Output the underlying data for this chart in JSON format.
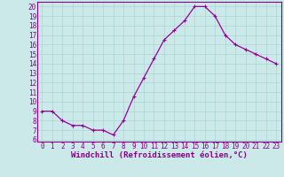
{
  "x": [
    0,
    1,
    2,
    3,
    4,
    5,
    6,
    7,
    8,
    9,
    10,
    11,
    12,
    13,
    14,
    15,
    16,
    17,
    18,
    19,
    20,
    21,
    22,
    23
  ],
  "y": [
    9,
    9,
    8,
    7.5,
    7.5,
    7,
    7,
    6.5,
    8,
    10.5,
    12.5,
    14.5,
    16.5,
    17.5,
    18.5,
    20,
    20,
    19,
    17,
    16,
    15.5,
    15,
    14.5,
    14
  ],
  "line_color": "#990099",
  "marker": "+",
  "marker_size": 3,
  "bg_color": "#cce9e9",
  "grid_color": "#aad4d4",
  "xlabel": "Windchill (Refroidissement éolien,°C)",
  "xlim": [
    -0.5,
    23.5
  ],
  "ylim": [
    5.8,
    20.5
  ],
  "yticks": [
    6,
    7,
    8,
    9,
    10,
    11,
    12,
    13,
    14,
    15,
    16,
    17,
    18,
    19,
    20
  ],
  "xticks": [
    0,
    1,
    2,
    3,
    4,
    5,
    6,
    7,
    8,
    9,
    10,
    11,
    12,
    13,
    14,
    15,
    16,
    17,
    18,
    19,
    20,
    21,
    22,
    23
  ],
  "tick_fontsize": 5.5,
  "xlabel_fontsize": 6.5,
  "label_color": "#880088",
  "spine_color": "#880088"
}
